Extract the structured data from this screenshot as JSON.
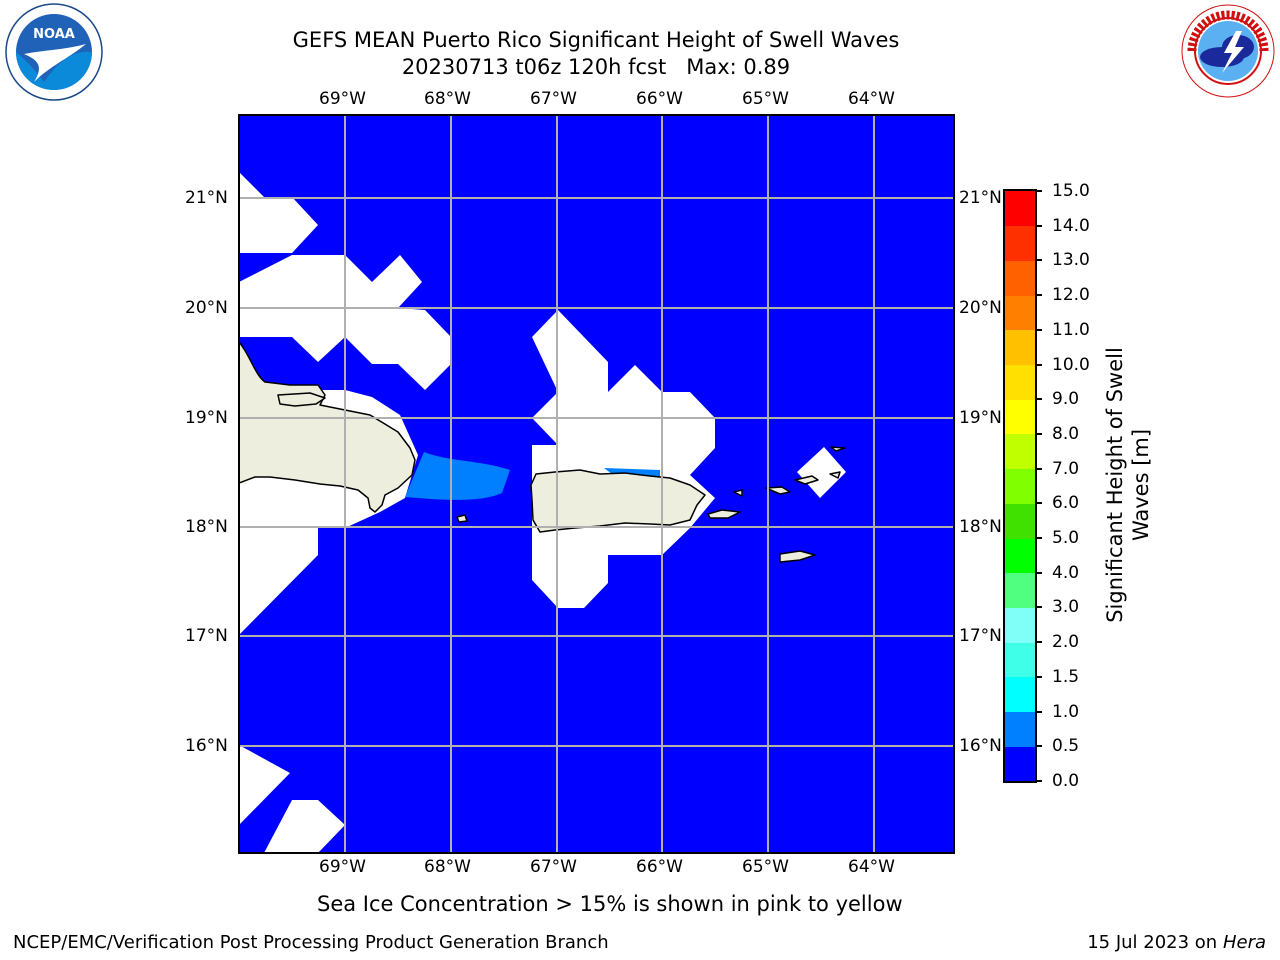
{
  "header": {
    "title_line1": "GEFS MEAN Puerto Rico Significant Height of Swell Waves",
    "title_line2": "20230713 t06z 120h fcst   Max: 0.89"
  },
  "logos": {
    "left": {
      "name": "NOAA",
      "ring_text": "NATIONAL OCEANIC AND ATMOSPHERIC ADMINISTRATION",
      "bottom_text": "U.S. DEPARTMENT OF COMMERCE"
    },
    "right": {
      "ring_text": "NATIONAL WEATHER SERVICE"
    }
  },
  "map": {
    "lon_labels": [
      "69°W",
      "68°W",
      "67°W",
      "66°W",
      "65°W",
      "64°W"
    ],
    "lat_labels": [
      "21°N",
      "20°N",
      "19°N",
      "18°N",
      "17°N",
      "16°N"
    ],
    "ocean_color": "#0000ff",
    "land_color": "#eeeede",
    "no_data_color": "#ffffff",
    "highlight_color": "#0080ff",
    "grid_color": "#b0b0b0"
  },
  "colorbar": {
    "label_line1": "Significant Height of Swell",
    "label_line2": "Waves [m]",
    "ticks": [
      "0.0",
      "0.5",
      "1.0",
      "1.5",
      "2.0",
      "3.0",
      "4.0",
      "5.0",
      "6.0",
      "7.0",
      "8.0",
      "9.0",
      "10.0",
      "11.0",
      "12.0",
      "13.0",
      "14.0",
      "15.0"
    ],
    "colors": [
      "#0000ff",
      "#0080ff",
      "#00ffff",
      "#40ffe8",
      "#80fff8",
      "#50ff80",
      "#00ff00",
      "#40e000",
      "#80ff00",
      "#c0ff00",
      "#ffff00",
      "#ffe000",
      "#ffc000",
      "#ff8000",
      "#ff6000",
      "#ff3000",
      "#ff0000"
    ]
  },
  "caption": "Sea Ice Concentration > 15% is shown in pink to yellow",
  "footer": {
    "left": "NCEP/EMC/Verification Post Processing Product Generation Branch",
    "right_prefix": "15 Jul 2023 on ",
    "right_machine": "Hera"
  }
}
